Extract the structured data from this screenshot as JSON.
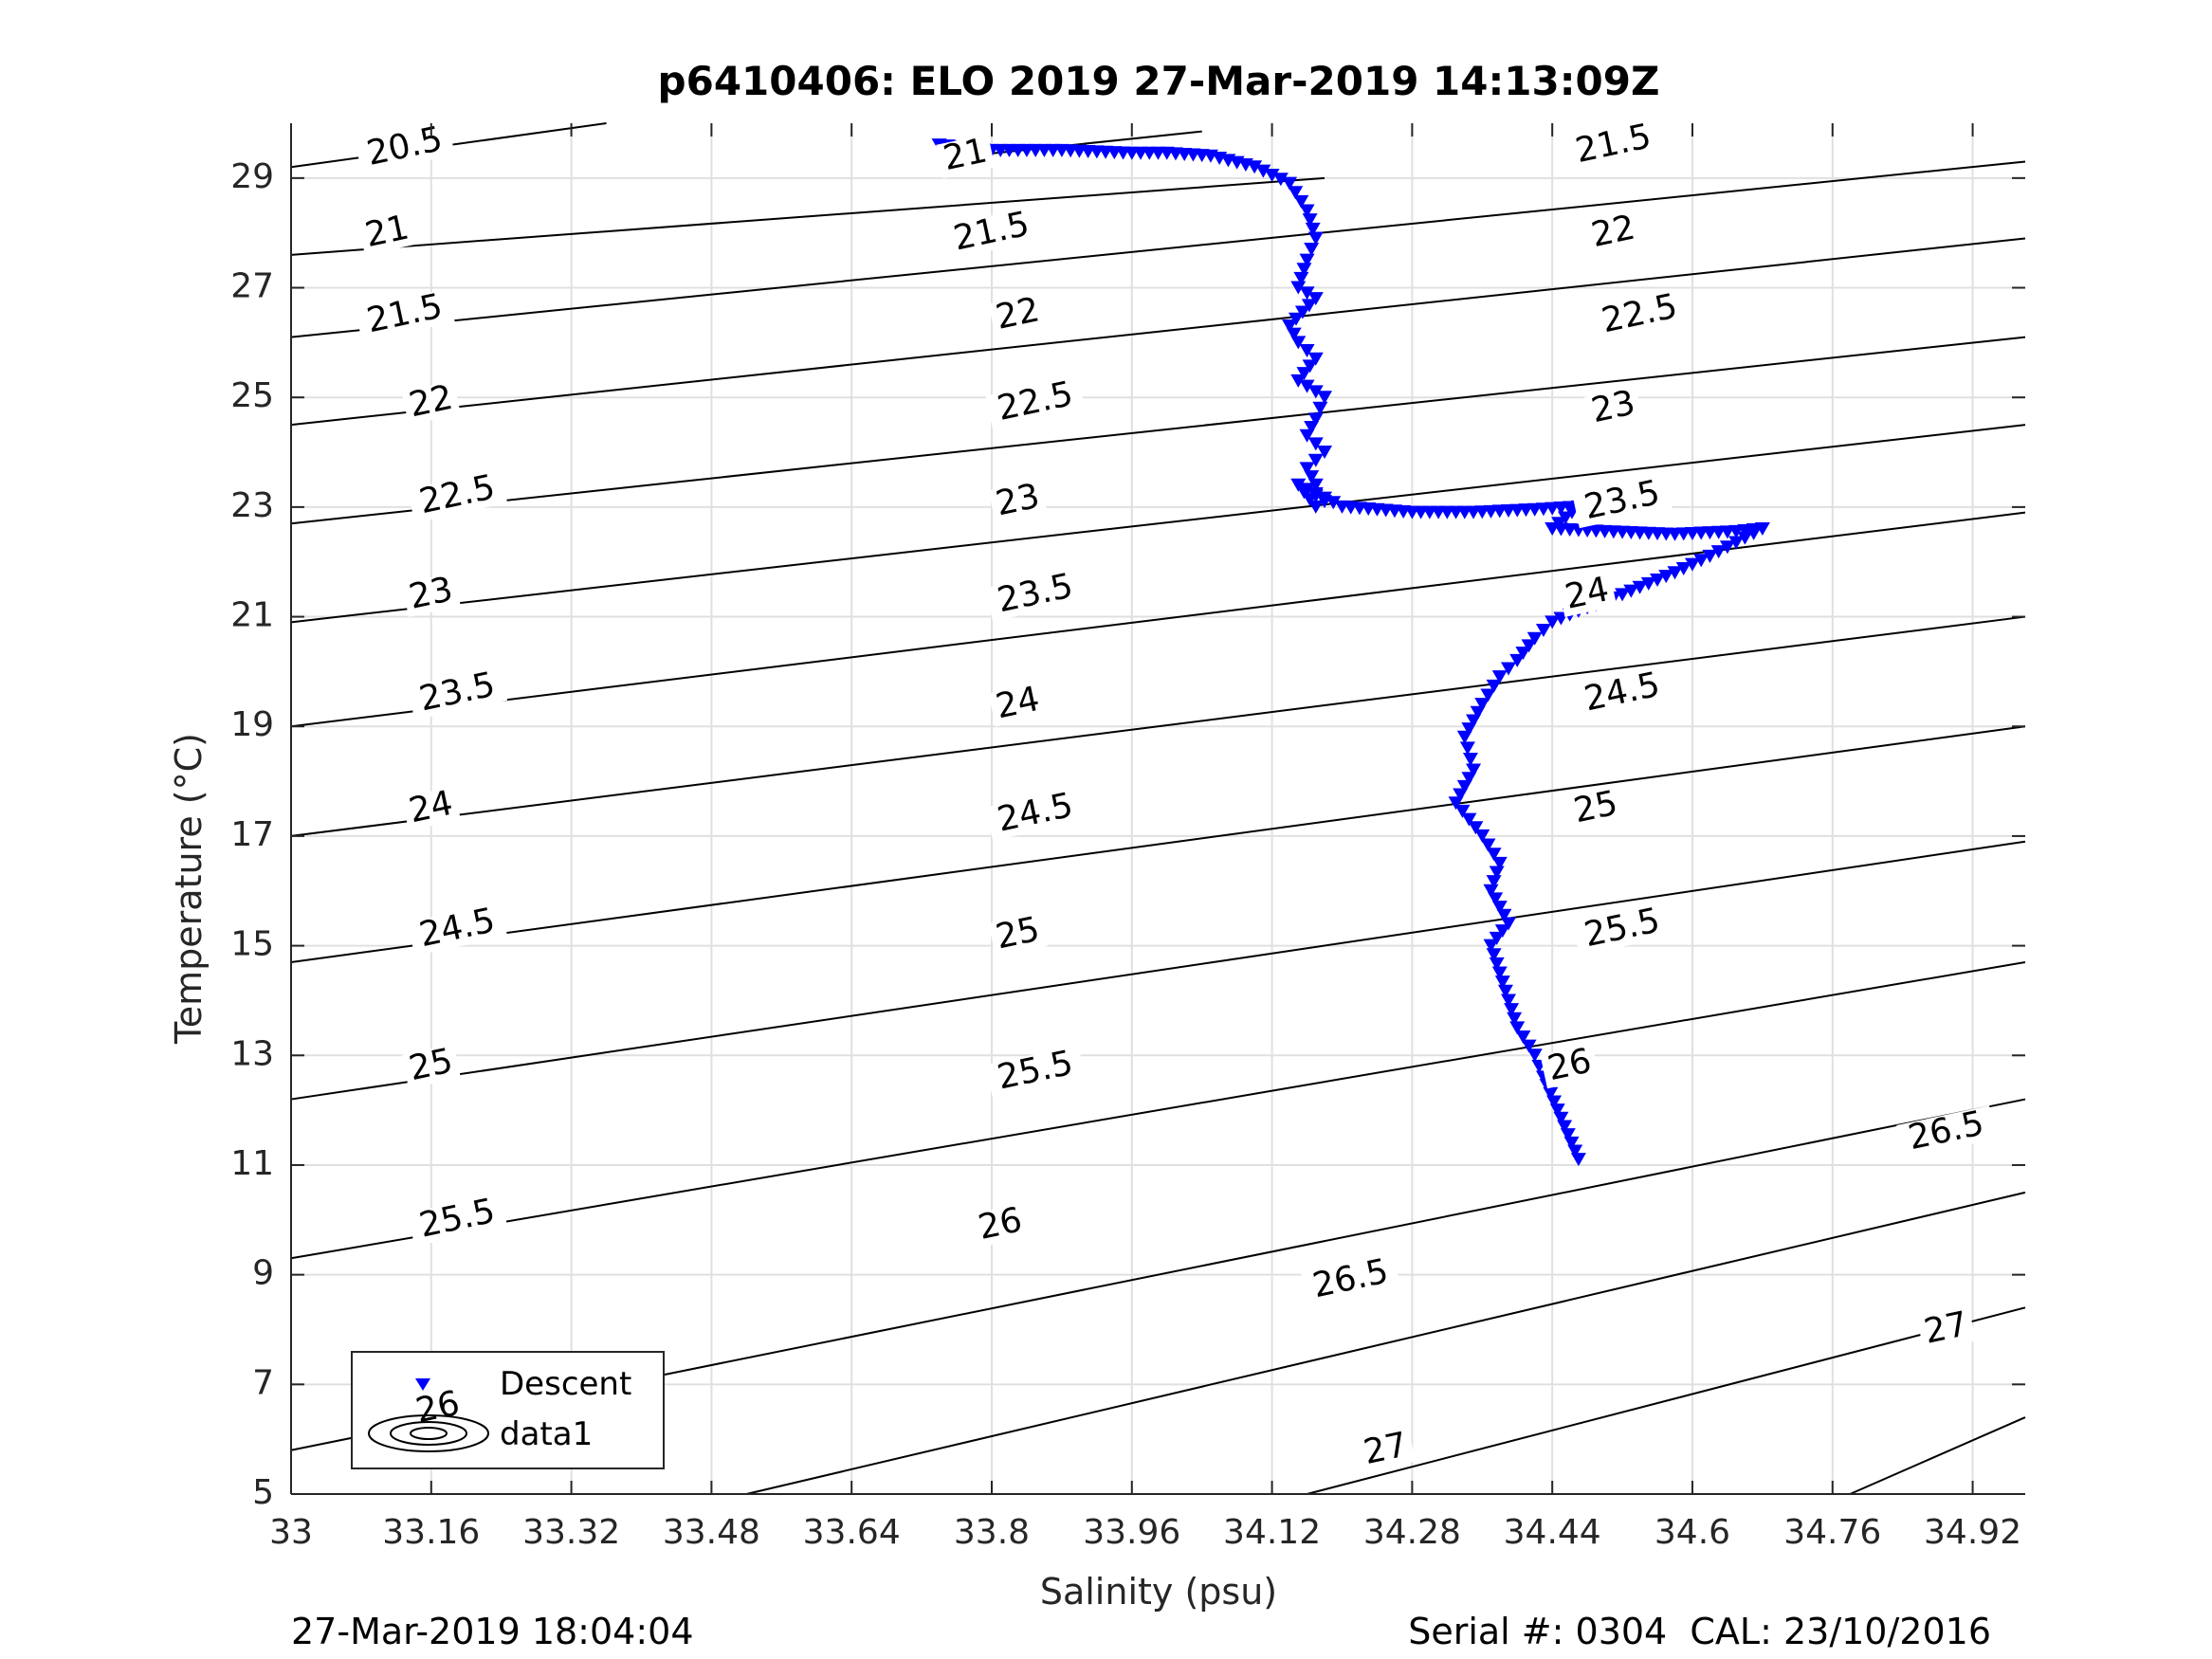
{
  "chart_data": {
    "type": "scatter",
    "title": "p6410406: ELO 2019 27-Mar-2019 14:13:09Z",
    "xlabel": "Salinity (psu)",
    "ylabel": "Temperature (°C)",
    "xlim": [
      33,
      34.98
    ],
    "ylim": [
      5,
      30
    ],
    "grid": true,
    "xticks": [
      33,
      33.16,
      33.32,
      33.48,
      33.64,
      33.8,
      33.96,
      34.12,
      34.28,
      34.44,
      34.6,
      34.76,
      34.92
    ],
    "xtick_labels": [
      "33",
      "33.16",
      "33.32",
      "33.48",
      "33.64",
      "33.8",
      "33.96",
      "34.12",
      "34.28",
      "34.44",
      "34.6",
      "34.76",
      "34.92"
    ],
    "yticks": [
      5,
      7,
      9,
      11,
      13,
      15,
      17,
      19,
      21,
      23,
      25,
      27,
      29
    ],
    "ytick_labels": [
      "5",
      "7",
      "9",
      "11",
      "13",
      "15",
      "17",
      "19",
      "21",
      "23",
      "25",
      "27",
      "29"
    ],
    "series": [
      {
        "name": "Descent",
        "marker": "triangle-down",
        "color": "#0000ff",
        "x": [
          33.74,
          33.8,
          33.88,
          33.96,
          34.0,
          34.05,
          34.1,
          34.14,
          34.16,
          34.17,
          34.16,
          34.15,
          34.17,
          34.14,
          34.15,
          34.17,
          34.15,
          34.18,
          34.17,
          34.16,
          34.18,
          34.16,
          34.17,
          34.16,
          34.18,
          34.17,
          34.15,
          34.2,
          34.28,
          34.35,
          34.42,
          34.47,
          34.44,
          34.5,
          34.58,
          34.65,
          34.68,
          34.62,
          34.58,
          34.52,
          34.47,
          34.44,
          34.42,
          34.4,
          34.38,
          34.36,
          34.34,
          34.35,
          34.33,
          34.36,
          34.38,
          34.37,
          34.39,
          34.37,
          34.38,
          34.39,
          34.4,
          34.42,
          34.43,
          34.47
        ],
        "y": [
          29.6,
          29.5,
          29.5,
          29.45,
          29.45,
          29.4,
          29.2,
          28.9,
          28.4,
          27.9,
          27.5,
          27.0,
          26.8,
          26.3,
          26.0,
          25.7,
          25.3,
          25.0,
          24.6,
          24.3,
          24.0,
          23.7,
          23.4,
          23.3,
          23.1,
          23.0,
          23.4,
          23.0,
          22.9,
          22.9,
          22.95,
          23.0,
          22.6,
          22.55,
          22.5,
          22.55,
          22.6,
          22.1,
          21.8,
          21.4,
          21.1,
          20.9,
          20.6,
          20.2,
          19.9,
          19.4,
          18.8,
          18.2,
          17.6,
          17.0,
          16.5,
          16.0,
          15.4,
          15.0,
          14.5,
          14.0,
          13.5,
          13.0,
          12.6,
          11.1
        ]
      },
      {
        "name": "data1",
        "marker": "contour",
        "color": "#000000"
      }
    ],
    "density_contours": [
      {
        "label": "20.5",
        "x0": 33.0,
        "y0": 29.2,
        "x1": 33.36,
        "y1": 30.0
      },
      {
        "label": "21",
        "x0": 33.74,
        "y0": 29.35,
        "x1": 34.04,
        "y1": 29.85
      },
      {
        "label": "21",
        "x0": 33.0,
        "y0": 27.6,
        "x1": 34.18,
        "y1": 29.0
      },
      {
        "label": "21.5",
        "x0": 33.0,
        "y0": 26.1,
        "x1": 34.98,
        "y1": 29.3
      },
      {
        "label": "22",
        "x0": 33.0,
        "y0": 24.5,
        "x1": 34.98,
        "y1": 27.9
      },
      {
        "label": "22.5",
        "x0": 33.0,
        "y0": 22.7,
        "x1": 34.98,
        "y1": 26.1
      },
      {
        "label": "23",
        "x0": 33.0,
        "y0": 20.9,
        "x1": 34.98,
        "y1": 24.5
      },
      {
        "label": "23.5",
        "x0": 33.0,
        "y0": 19.0,
        "x1": 34.98,
        "y1": 22.9
      },
      {
        "label": "24",
        "x0": 33.0,
        "y0": 17.0,
        "x1": 34.98,
        "y1": 21.0
      },
      {
        "label": "24.5",
        "x0": 33.0,
        "y0": 14.7,
        "x1": 34.98,
        "y1": 19.0
      },
      {
        "label": "25",
        "x0": 33.0,
        "y0": 12.2,
        "x1": 34.98,
        "y1": 16.9
      },
      {
        "label": "25.5",
        "x0": 33.0,
        "y0": 9.3,
        "x1": 34.98,
        "y1": 14.7
      },
      {
        "label": "26",
        "x0": 33.0,
        "y0": 5.8,
        "x1": 34.98,
        "y1": 12.2
      },
      {
        "label": "26.5",
        "x0": 33.52,
        "y0": 5.0,
        "x1": 34.98,
        "y1": 10.5
      },
      {
        "label": "27",
        "x0": 34.16,
        "y0": 5.0,
        "x1": 34.98,
        "y1": 8.4
      },
      {
        "label": "",
        "x0": 34.78,
        "y0": 5.0,
        "x1": 34.98,
        "y1": 6.4
      }
    ],
    "contour_labels": [
      {
        "label": "20.5",
        "x": 33.13,
        "y": 29.55
      },
      {
        "label": "21",
        "x": 33.11,
        "y": 28.0
      },
      {
        "label": "21.5",
        "x": 33.13,
        "y": 26.5
      },
      {
        "label": "22",
        "x": 33.16,
        "y": 24.9
      },
      {
        "label": "22.5",
        "x": 33.19,
        "y": 23.2
      },
      {
        "label": "23",
        "x": 33.16,
        "y": 21.4
      },
      {
        "label": "23.5",
        "x": 33.19,
        "y": 19.6
      },
      {
        "label": "24",
        "x": 33.16,
        "y": 17.5
      },
      {
        "label": "24.5",
        "x": 33.19,
        "y": 15.3
      },
      {
        "label": "25",
        "x": 33.16,
        "y": 12.8
      },
      {
        "label": "25.5",
        "x": 33.19,
        "y": 10.0
      },
      {
        "label": "26",
        "x": 33.16,
        "y": 6.6
      },
      {
        "label": "21",
        "x": 33.77,
        "y": 29.4
      },
      {
        "label": "21.5",
        "x": 33.8,
        "y": 28.0
      },
      {
        "label": "22",
        "x": 33.83,
        "y": 26.5
      },
      {
        "label": "22.5",
        "x": 33.85,
        "y": 24.9
      },
      {
        "label": "23",
        "x": 33.83,
        "y": 23.1
      },
      {
        "label": "23.5",
        "x": 33.85,
        "y": 21.4
      },
      {
        "label": "24",
        "x": 33.83,
        "y": 19.4
      },
      {
        "label": "24.5",
        "x": 33.85,
        "y": 17.4
      },
      {
        "label": "25",
        "x": 33.83,
        "y": 15.2
      },
      {
        "label": "25.5",
        "x": 33.85,
        "y": 12.7
      },
      {
        "label": "26",
        "x": 33.81,
        "y": 9.9
      },
      {
        "label": "21.5",
        "x": 34.51,
        "y": 29.6
      },
      {
        "label": "22",
        "x": 34.51,
        "y": 28.0
      },
      {
        "label": "22.5",
        "x": 34.54,
        "y": 26.5
      },
      {
        "label": "23",
        "x": 34.51,
        "y": 24.8
      },
      {
        "label": "23.5",
        "x": 34.52,
        "y": 23.1
      },
      {
        "label": "24",
        "x": 34.48,
        "y": 21.4
      },
      {
        "label": "24.5",
        "x": 34.52,
        "y": 19.6
      },
      {
        "label": "25",
        "x": 34.49,
        "y": 17.5
      },
      {
        "label": "25.5",
        "x": 34.52,
        "y": 15.3
      },
      {
        "label": "26",
        "x": 34.46,
        "y": 12.8
      },
      {
        "label": "26.5",
        "x": 34.21,
        "y": 8.9
      },
      {
        "label": "26.5",
        "x": 34.89,
        "y": 11.6
      },
      {
        "label": "27",
        "x": 34.25,
        "y": 5.8
      },
      {
        "label": "27",
        "x": 34.89,
        "y": 8.0
      }
    ]
  },
  "legend": {
    "location": "bottom-left",
    "items": [
      {
        "label": "Descent",
        "symbol": "blue-triangle-marker-icon"
      },
      {
        "label": "data1",
        "symbol": "contour-ellipse-icon"
      }
    ]
  },
  "footer": {
    "timestamp": "27-Mar-2019 18:04:04",
    "serial": "Serial #: 0304  CAL: 23/10/2016"
  },
  "colors": {
    "marker": "#0000ff",
    "contour": "#000000",
    "grid": "#e0e0e0",
    "axis": "#262626",
    "text": "#262626"
  }
}
